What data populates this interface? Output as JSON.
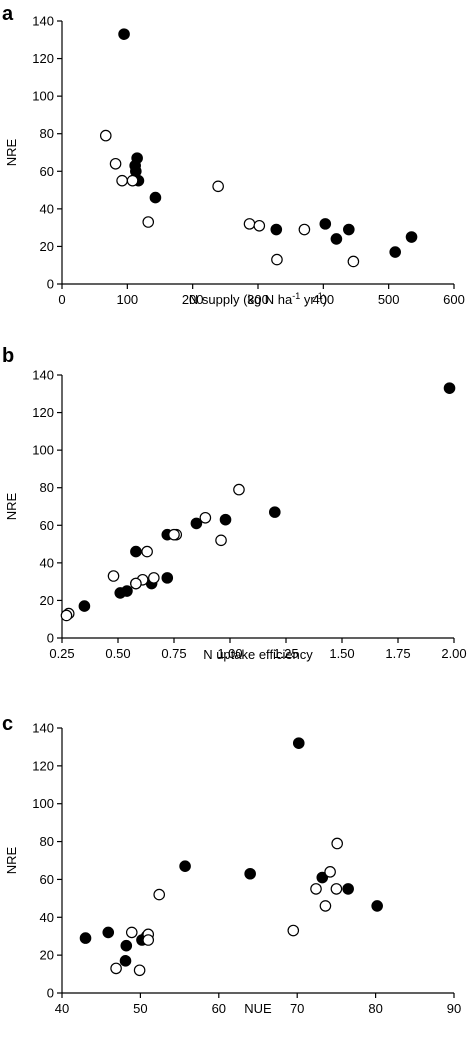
{
  "chart_data": [
    {
      "panel": "a",
      "type": "scatter",
      "xlabel_parts": [
        "N supply (kg N ha",
        "-1",
        " yr",
        "-1",
        ")"
      ],
      "ylabel": "NRE",
      "xlim": [
        0,
        600
      ],
      "ylim": [
        0,
        140
      ],
      "xticks": [
        0,
        100,
        200,
        300,
        400,
        500,
        600
      ],
      "xtick_labels": [
        "0",
        "100",
        "200",
        "300",
        "400",
        "500",
        "600"
      ],
      "yticks": [
        0,
        20,
        40,
        60,
        80,
        100,
        120,
        140
      ],
      "ytick_labels": [
        "0",
        "20",
        "40",
        "60",
        "80",
        "100",
        "120",
        "140"
      ],
      "series": [
        {
          "marker": "filled",
          "points": [
            [
              95,
              133
            ],
            [
              115,
              67
            ],
            [
              112,
              63
            ],
            [
              113,
              60
            ],
            [
              117,
              55
            ],
            [
              143,
              46
            ],
            [
              328,
              29
            ],
            [
              403,
              32
            ],
            [
              420,
              24
            ],
            [
              439,
              29
            ],
            [
              510,
              17
            ],
            [
              535,
              25
            ]
          ]
        },
        {
          "marker": "open",
          "points": [
            [
              67,
              79
            ],
            [
              82,
              64
            ],
            [
              92,
              55
            ],
            [
              108,
              55
            ],
            [
              132,
              33
            ],
            [
              239,
              52
            ],
            [
              287,
              32
            ],
            [
              302,
              31
            ],
            [
              329,
              13
            ],
            [
              371,
              29
            ],
            [
              446,
              12
            ]
          ]
        }
      ]
    },
    {
      "panel": "b",
      "type": "scatter",
      "xlabel": "N uptake efficiency",
      "ylabel": "NRE",
      "xlim": [
        0.25,
        2.0
      ],
      "ylim": [
        0,
        140
      ],
      "xticks": [
        0.25,
        0.5,
        0.75,
        1.0,
        1.25,
        1.5,
        1.75,
        2.0
      ],
      "xtick_labels": [
        "0.25",
        "0.50",
        "0.75",
        "1.00",
        "1.25",
        "1.50",
        "1.75",
        "2.00"
      ],
      "yticks": [
        0,
        20,
        40,
        60,
        80,
        100,
        120,
        140
      ],
      "ytick_labels": [
        "0",
        "20",
        "40",
        "60",
        "80",
        "100",
        "120",
        "140"
      ],
      "series": [
        {
          "marker": "filled",
          "points": [
            [
              1.98,
              133
            ],
            [
              1.2,
              67
            ],
            [
              0.98,
              63
            ],
            [
              0.85,
              61
            ],
            [
              0.72,
              55
            ],
            [
              0.58,
              46
            ],
            [
              0.72,
              32
            ],
            [
              0.58,
              29
            ],
            [
              0.65,
              29
            ],
            [
              0.54,
              25
            ],
            [
              0.51,
              24
            ],
            [
              0.35,
              17
            ]
          ]
        },
        {
          "marker": "open",
          "points": [
            [
              1.04,
              79
            ],
            [
              0.89,
              64
            ],
            [
              0.76,
              55
            ],
            [
              0.75,
              55
            ],
            [
              0.96,
              52
            ],
            [
              0.63,
              46
            ],
            [
              0.48,
              33
            ],
            [
              0.61,
              31
            ],
            [
              0.66,
              32
            ],
            [
              0.58,
              29
            ],
            [
              0.28,
              13
            ],
            [
              0.27,
              12
            ]
          ]
        }
      ]
    },
    {
      "panel": "c",
      "type": "scatter",
      "xlabel": "NUE",
      "ylabel": "NRE",
      "xlim": [
        40,
        90
      ],
      "ylim": [
        0,
        140
      ],
      "xticks": [
        40,
        50,
        60,
        70,
        80,
        90
      ],
      "xtick_labels": [
        "40",
        "50",
        "60",
        "70",
        "80",
        "90"
      ],
      "yticks": [
        0,
        20,
        40,
        60,
        80,
        100,
        120,
        140
      ],
      "ytick_labels": [
        "0",
        "20",
        "40",
        "60",
        "80",
        "100",
        "120",
        "140"
      ],
      "series": [
        {
          "marker": "filled",
          "points": [
            [
              70.2,
              132
            ],
            [
              55.7,
              67
            ],
            [
              64.0,
              63
            ],
            [
              73.2,
              61
            ],
            [
              76.5,
              55
            ],
            [
              80.2,
              46
            ],
            [
              43.0,
              29
            ],
            [
              45.9,
              32
            ],
            [
              48.2,
              25
            ],
            [
              48.1,
              17
            ],
            [
              50.2,
              28
            ],
            [
              50.8,
              30
            ]
          ]
        },
        {
          "marker": "open",
          "points": [
            [
              75.1,
              79
            ],
            [
              74.2,
              64
            ],
            [
              72.4,
              55
            ],
            [
              75.0,
              55
            ],
            [
              73.6,
              46
            ],
            [
              69.5,
              33
            ],
            [
              52.4,
              52
            ],
            [
              48.9,
              32
            ],
            [
              51.0,
              31
            ],
            [
              51.0,
              28
            ],
            [
              46.9,
              13
            ],
            [
              49.9,
              12
            ]
          ]
        }
      ]
    }
  ]
}
